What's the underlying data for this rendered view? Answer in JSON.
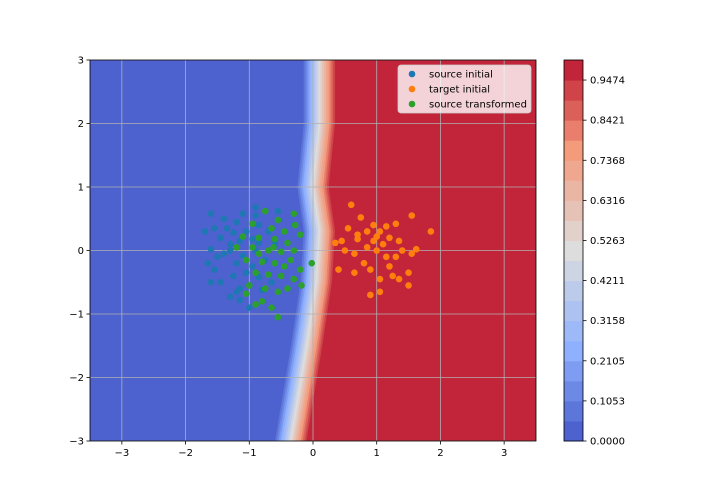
{
  "chart_data": {
    "type": "scatter",
    "title": "",
    "xlabel": "",
    "ylabel": "",
    "xlim": [
      -3.5,
      3.5
    ],
    "ylim": [
      -3,
      3
    ],
    "grid": true,
    "legend_placement": "top-right",
    "x_ticks": [
      -3,
      -2,
      -1,
      0,
      1,
      2,
      3
    ],
    "y_ticks": [
      -3,
      -2,
      -1,
      0,
      1,
      2,
      3
    ],
    "contour": {
      "colormap": "coolwarm",
      "boundary_points": [
        {
          "y": 3.0,
          "x": 0.1
        },
        {
          "y": 2.0,
          "x": 0.1
        },
        {
          "y": 1.0,
          "x": 0.0
        },
        {
          "y": 0.3,
          "x": 0.1
        },
        {
          "y": -0.5,
          "x": 0.05
        },
        {
          "y": -1.5,
          "x": -0.1
        },
        {
          "y": -3.0,
          "x": -0.35
        }
      ]
    },
    "colorbar": {
      "tick_labels": [
        "0.0000",
        "0.1053",
        "0.2105",
        "0.3158",
        "0.4211",
        "0.5263",
        "0.6316",
        "0.7368",
        "0.8421",
        "0.9474"
      ],
      "levels": 19
    },
    "series": [
      {
        "name": "source initial",
        "color": "#1f77b4",
        "points": [
          [
            -1.6,
            0.58
          ],
          [
            -1.4,
            0.5
          ],
          [
            -1.55,
            0.35
          ],
          [
            -1.7,
            0.3
          ],
          [
            -1.45,
            0.2
          ],
          [
            -1.3,
            0.1
          ],
          [
            -1.6,
            0.02
          ],
          [
            -1.5,
            -0.1
          ],
          [
            -1.65,
            -0.2
          ],
          [
            -1.55,
            -0.3
          ],
          [
            -1.45,
            -0.5
          ],
          [
            -1.6,
            -0.5
          ],
          [
            -1.3,
            -0.73
          ],
          [
            -1.15,
            -0.78
          ],
          [
            -1.0,
            -0.9
          ],
          [
            -0.9,
            0.68
          ],
          [
            -1.1,
            0.58
          ],
          [
            -1.2,
            0.45
          ],
          [
            -0.85,
            0.4
          ],
          [
            -1.05,
            0.3
          ],
          [
            -1.25,
            0.28
          ],
          [
            -0.95,
            0.18
          ],
          [
            -1.15,
            0.15
          ],
          [
            -1.3,
            0.0
          ],
          [
            -0.9,
            0.0
          ],
          [
            -1.1,
            -0.08
          ],
          [
            -1.2,
            -0.2
          ],
          [
            -0.95,
            -0.25
          ],
          [
            -1.05,
            -0.35
          ],
          [
            -1.25,
            -0.4
          ],
          [
            -0.85,
            -0.42
          ],
          [
            -1.0,
            -0.55
          ],
          [
            -1.15,
            -0.6
          ],
          [
            -0.8,
            -0.62
          ],
          [
            -0.55,
            0.62
          ],
          [
            -0.7,
            0.3
          ],
          [
            -0.6,
            0.1
          ],
          [
            -0.75,
            -0.15
          ],
          [
            -0.65,
            -0.5
          ],
          [
            -0.5,
            -0.4
          ],
          [
            -1.4,
            -0.05
          ],
          [
            -1.35,
            0.35
          ],
          [
            -0.9,
            0.55
          ],
          [
            -1.2,
            -0.65
          ],
          [
            -0.85,
            0.12
          ]
        ]
      },
      {
        "name": "target initial",
        "color": "#ff7f0e",
        "points": [
          [
            0.6,
            0.72
          ],
          [
            0.75,
            0.52
          ],
          [
            0.95,
            0.4
          ],
          [
            1.05,
            0.3
          ],
          [
            1.15,
            0.38
          ],
          [
            1.3,
            0.42
          ],
          [
            1.55,
            0.55
          ],
          [
            1.85,
            0.3
          ],
          [
            0.55,
            0.35
          ],
          [
            0.7,
            0.18
          ],
          [
            0.45,
            0.15
          ],
          [
            0.35,
            0.12
          ],
          [
            0.5,
            0.0
          ],
          [
            0.65,
            -0.05
          ],
          [
            0.85,
            0.05
          ],
          [
            0.95,
            0.15
          ],
          [
            1.0,
            0.0
          ],
          [
            1.1,
            0.1
          ],
          [
            1.2,
            0.2
          ],
          [
            1.35,
            0.15
          ],
          [
            1.4,
            0.0
          ],
          [
            1.3,
            -0.1
          ],
          [
            1.55,
            -0.05
          ],
          [
            1.62,
            0.02
          ],
          [
            0.4,
            -0.3
          ],
          [
            0.65,
            -0.35
          ],
          [
            0.8,
            -0.2
          ],
          [
            0.9,
            -0.3
          ],
          [
            1.05,
            -0.45
          ],
          [
            1.2,
            -0.25
          ],
          [
            1.35,
            -0.45
          ],
          [
            1.5,
            -0.35
          ],
          [
            1.05,
            -0.65
          ],
          [
            0.9,
            -0.7
          ],
          [
            1.5,
            -0.55
          ],
          [
            0.85,
            0.3
          ],
          [
            1.25,
            -0.4
          ],
          [
            0.7,
            0.25
          ],
          [
            1.0,
            0.22
          ],
          [
            1.15,
            -0.1
          ]
        ]
      },
      {
        "name": "source transformed",
        "color": "#2ca02c",
        "points": [
          [
            -0.75,
            0.62
          ],
          [
            -0.55,
            0.48
          ],
          [
            -0.3,
            0.58
          ],
          [
            -0.95,
            0.42
          ],
          [
            -0.65,
            0.35
          ],
          [
            -0.45,
            0.3
          ],
          [
            -0.28,
            0.4
          ],
          [
            -1.1,
            0.22
          ],
          [
            -0.85,
            0.2
          ],
          [
            -0.6,
            0.18
          ],
          [
            -0.4,
            0.12
          ],
          [
            -0.2,
            0.25
          ],
          [
            -1.2,
            0.05
          ],
          [
            -0.95,
            0.05
          ],
          [
            -0.7,
            0.0
          ],
          [
            -0.5,
            -0.02
          ],
          [
            -0.3,
            0.0
          ],
          [
            -0.02,
            -0.2
          ],
          [
            -1.05,
            -0.15
          ],
          [
            -0.8,
            -0.18
          ],
          [
            -0.6,
            -0.2
          ],
          [
            -0.35,
            -0.15
          ],
          [
            -0.2,
            -0.3
          ],
          [
            -0.9,
            -0.35
          ],
          [
            -0.7,
            -0.38
          ],
          [
            -0.5,
            -0.4
          ],
          [
            -0.3,
            -0.45
          ],
          [
            -0.18,
            -0.55
          ],
          [
            -1.0,
            -0.55
          ],
          [
            -0.75,
            -0.6
          ],
          [
            -0.55,
            -0.65
          ],
          [
            -0.8,
            -0.8
          ],
          [
            -0.65,
            -0.9
          ],
          [
            -0.55,
            -1.05
          ],
          [
            -0.9,
            -0.85
          ],
          [
            -1.05,
            -0.68
          ],
          [
            -0.4,
            -0.6
          ],
          [
            -0.62,
            0.05
          ],
          [
            -0.85,
            -0.05
          ],
          [
            -0.45,
            -0.25
          ]
        ]
      }
    ]
  }
}
